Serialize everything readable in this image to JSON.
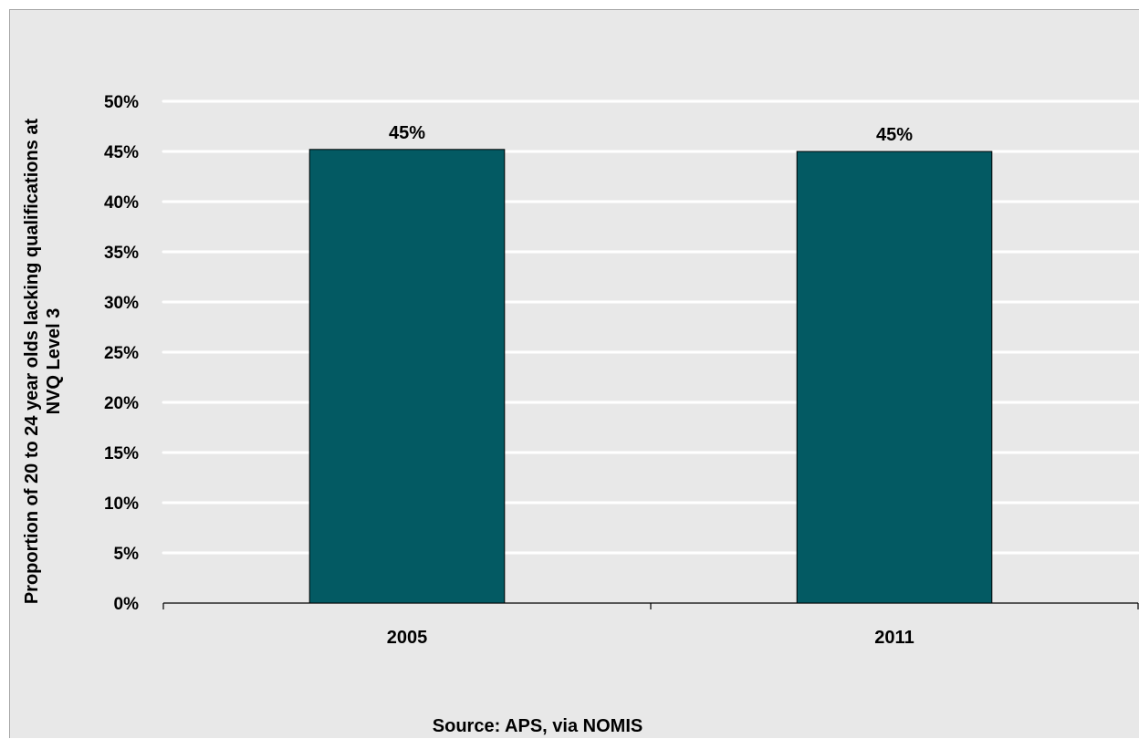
{
  "chart_data": {
    "type": "bar",
    "categories": [
      "2005",
      "2011"
    ],
    "values": [
      45.2,
      45.0
    ],
    "data_labels": [
      "45%",
      "45%"
    ],
    "ylabel_lines": [
      "Proportion of  20 to 24 year olds lacking qualifications at",
      "NVQ Level 3"
    ],
    "ylim": [
      0,
      50
    ],
    "yticks": [
      0,
      5,
      10,
      15,
      20,
      25,
      30,
      35,
      40,
      45,
      50
    ],
    "ytick_labels": [
      "0%",
      "5%",
      "10%",
      "15%",
      "20%",
      "25%",
      "30%",
      "35%",
      "40%",
      "45%",
      "50%"
    ],
    "grid": true,
    "source": "Source: APS,  via NOMIS",
    "colors": {
      "bar": "#035a63",
      "bar_edge": "#000000",
      "background": "#e8e8e8",
      "grid": "#ffffff"
    }
  }
}
